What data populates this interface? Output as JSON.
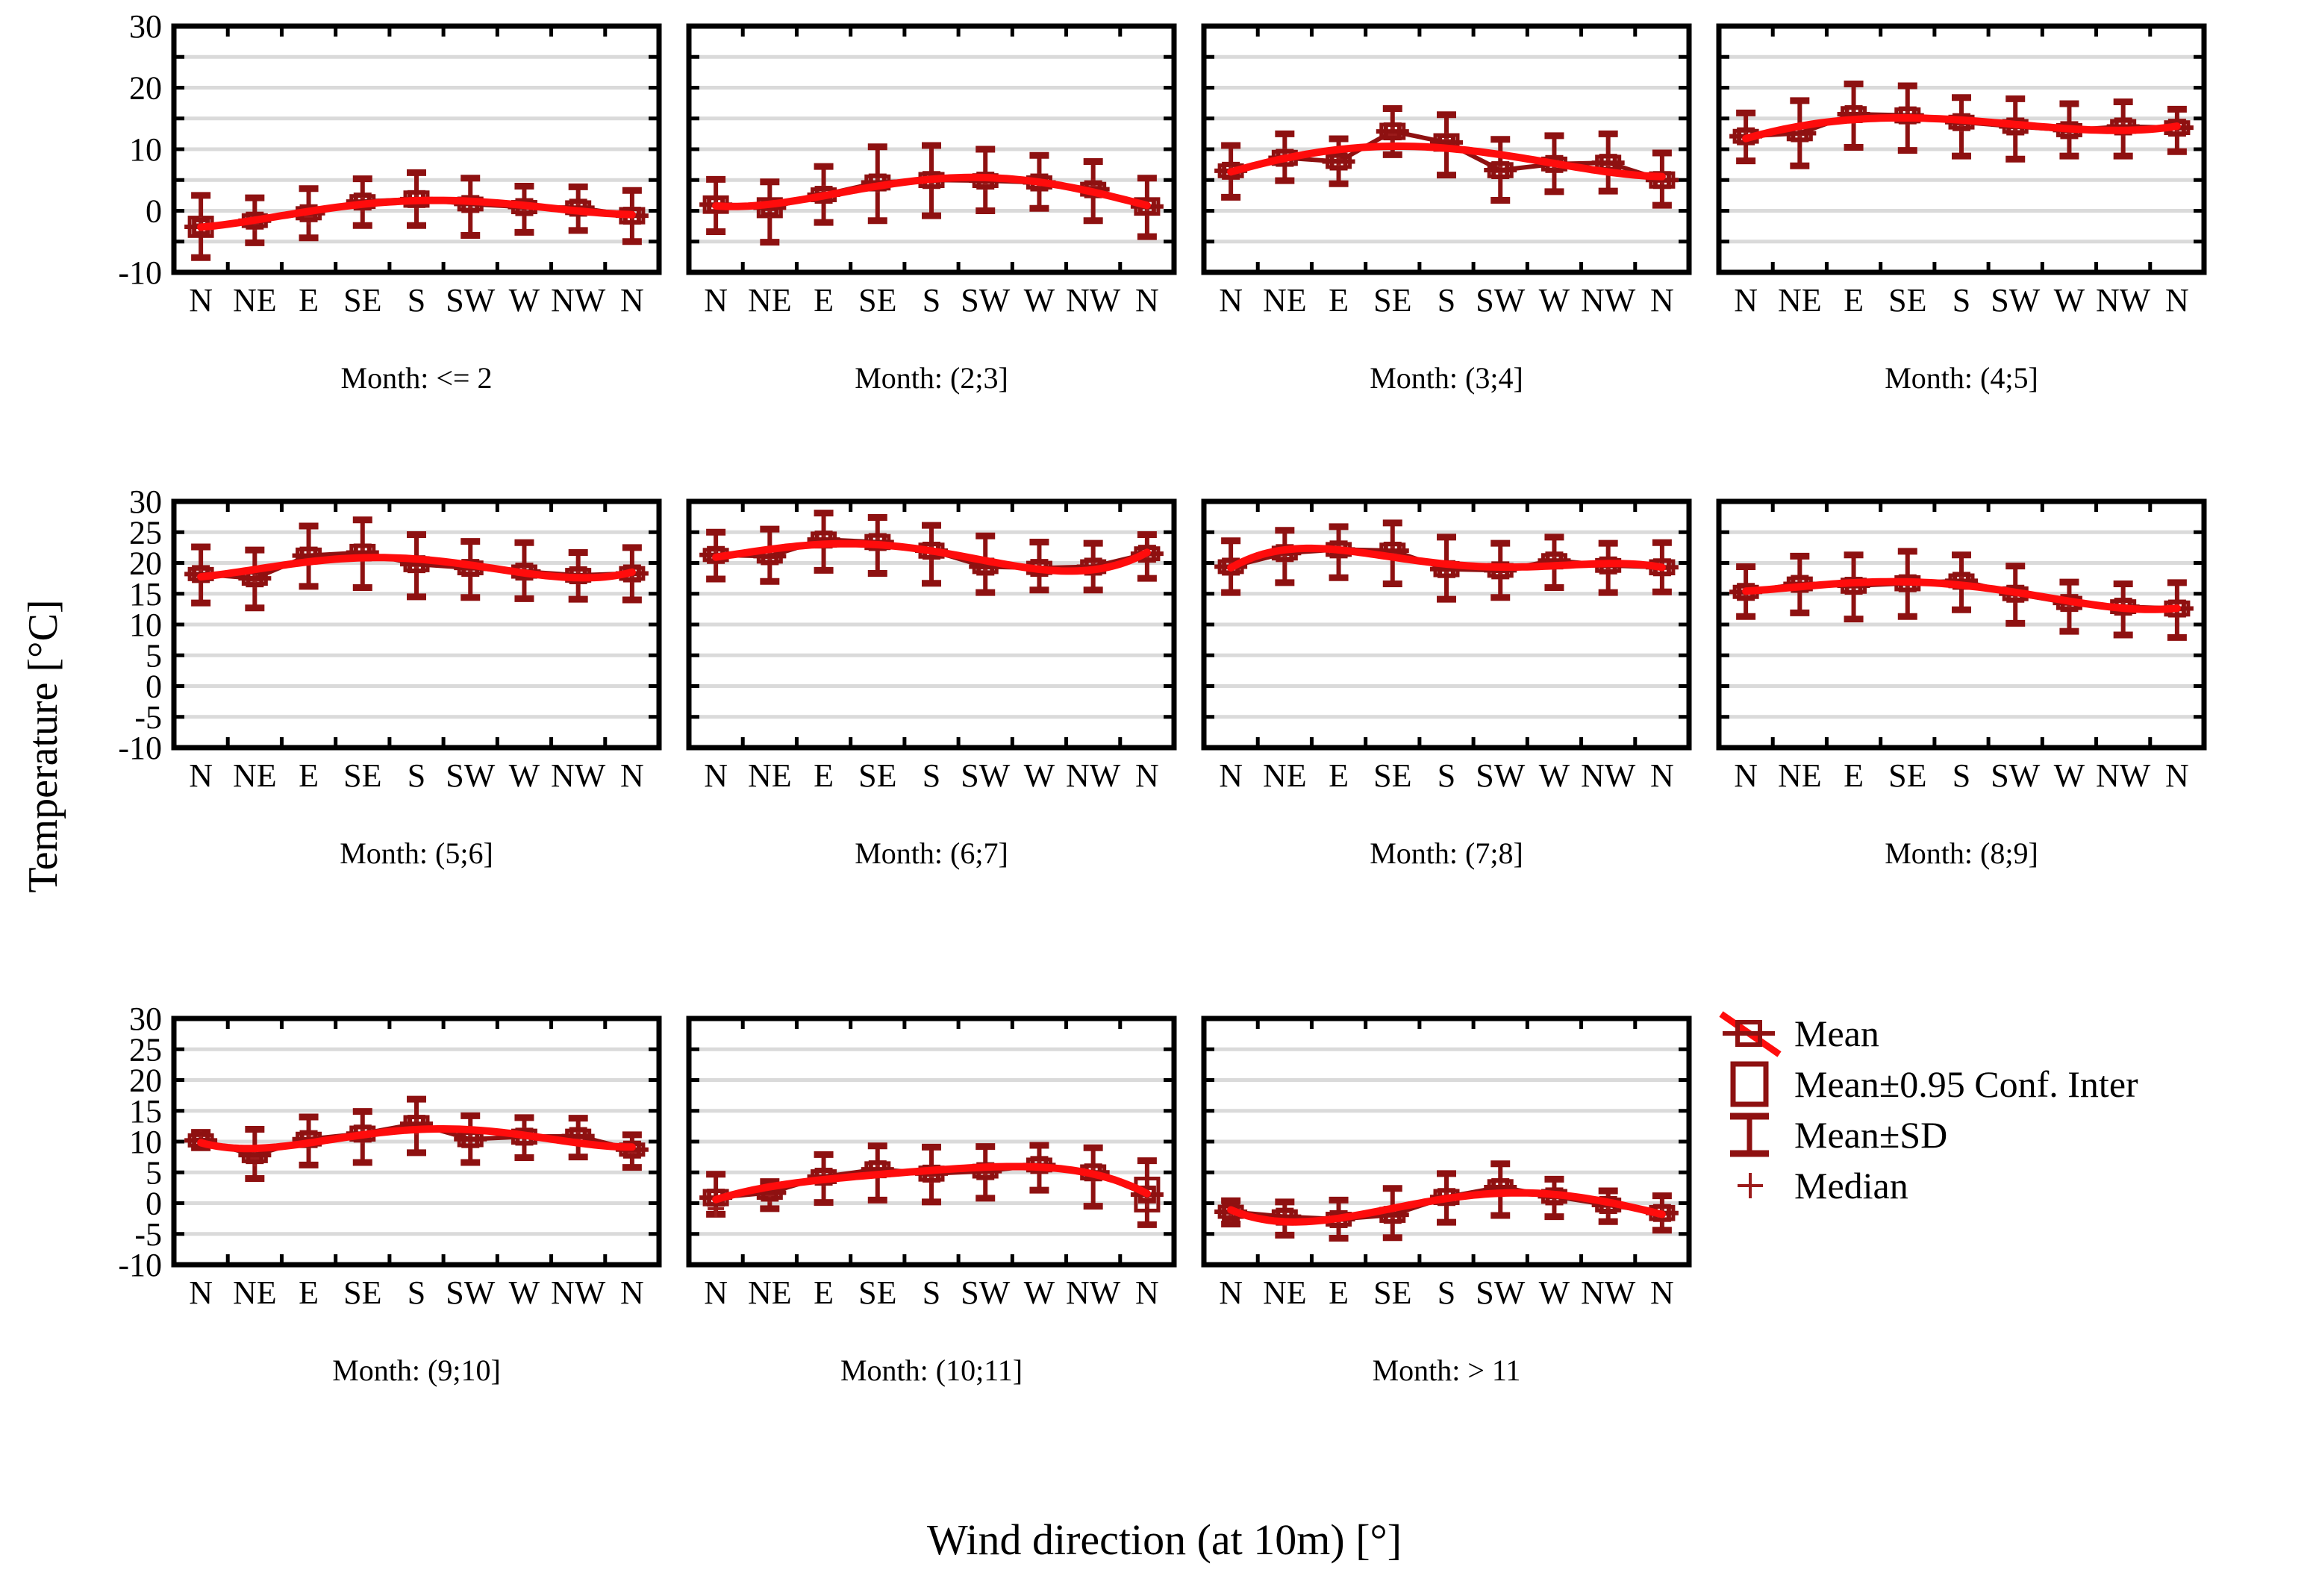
{
  "figure": {
    "y_axis_label": "Temperature [°C]",
    "x_axis_label": "Wind direction (at 10m) [°]",
    "colors": {
      "dark_red": "#8E1111",
      "bright_red": "#FF0C0C",
      "gridline": "#DADADA",
      "axis": "#000000"
    },
    "y_tick_labels_row1": [
      "30",
      "20",
      "10",
      "0",
      "-10"
    ],
    "y_tick_labels_rows23": [
      "30",
      "25",
      "20",
      "15",
      "10",
      "5",
      "0",
      "-5",
      "-10"
    ]
  },
  "legend": {
    "items": [
      {
        "label": "Mean",
        "symbol": "mean-square-with-line-icon"
      },
      {
        "label": "Mean±0.95 Conf. Inter",
        "symbol": "conf-interval-square-icon"
      },
      {
        "label": "Mean±SD",
        "symbol": "sd-whisker-icon"
      },
      {
        "label": "Median",
        "symbol": "median-plus-icon"
      }
    ]
  },
  "chart_data": [
    {
      "type": "line",
      "title": "Month: <= 2",
      "categories": [
        "N",
        "NE",
        "E",
        "SE",
        "S",
        "SW",
        "W",
        "NW",
        "N"
      ],
      "ylim": [
        -10,
        30
      ],
      "y_tick_labels": [
        "30",
        "20",
        "10",
        "0",
        "-10"
      ],
      "grid": true,
      "series": [
        {
          "name": "Mean",
          "values": [
            -2.6,
            -1.6,
            -0.4,
            1.5,
            1.9,
            1.1,
            0.6,
            0.5,
            -0.8
          ]
        },
        {
          "name": "Mean+SD",
          "values": [
            2.5,
            2.1,
            3.6,
            5.2,
            6.2,
            5.3,
            4.0,
            3.9,
            3.3
          ]
        },
        {
          "name": "Mean-SD",
          "values": [
            -7.6,
            -5.2,
            -4.4,
            -2.4,
            -2.4,
            -4.0,
            -3.5,
            -3.2,
            -5.0
          ]
        },
        {
          "name": "Median",
          "values": [
            -2.3,
            -2.0,
            -0.9,
            1.2,
            1.6,
            1.3,
            0.4,
            0.6,
            -0.6
          ]
        },
        {
          "name": "CI95_halfwidth",
          "values": [
            1.5,
            0.9,
            0.8,
            0.9,
            1.1,
            0.9,
            0.8,
            0.9,
            1.1
          ]
        }
      ]
    },
    {
      "type": "line",
      "title": "Month: (2;3]",
      "categories": [
        "N",
        "NE",
        "E",
        "SE",
        "S",
        "SW",
        "W",
        "NW",
        "N"
      ],
      "ylim": [
        -10,
        30
      ],
      "y_tick_labels": [],
      "grid": true,
      "series": [
        {
          "name": "Mean",
          "values": [
            1.0,
            0.5,
            2.6,
            4.6,
            5.0,
            4.9,
            4.6,
            3.5,
            0.7
          ]
        },
        {
          "name": "Mean+SD",
          "values": [
            5.1,
            4.7,
            7.2,
            10.4,
            10.6,
            10.0,
            9.0,
            8.0,
            5.3
          ]
        },
        {
          "name": "Mean-SD",
          "values": [
            -3.4,
            -5.1,
            -1.9,
            -1.6,
            -0.8,
            0.0,
            0.4,
            -1.6,
            -4.2
          ]
        },
        {
          "name": "Median",
          "values": [
            0.8,
            0.2,
            2.9,
            4.2,
            4.7,
            4.6,
            4.8,
            3.8,
            0.5
          ]
        },
        {
          "name": "CI95_halfwidth",
          "values": [
            1.2,
            1.4,
            0.9,
            1.0,
            1.0,
            0.9,
            0.8,
            0.9,
            1.2
          ]
        }
      ]
    },
    {
      "type": "line",
      "title": "Month: (3;4]",
      "categories": [
        "N",
        "NE",
        "E",
        "SE",
        "S",
        "SW",
        "W",
        "NW",
        "N"
      ],
      "ylim": [
        -10,
        30
      ],
      "y_tick_labels": [],
      "grid": true,
      "series": [
        {
          "name": "Mean",
          "values": [
            6.5,
            8.6,
            8.0,
            12.9,
            11.1,
            6.6,
            7.6,
            7.8,
            5.0
          ]
        },
        {
          "name": "Mean+SD",
          "values": [
            10.6,
            12.5,
            11.7,
            16.6,
            15.6,
            11.6,
            12.2,
            12.5,
            9.4
          ]
        },
        {
          "name": "Mean-SD",
          "values": [
            2.2,
            4.9,
            4.4,
            9.1,
            5.8,
            1.7,
            3.1,
            3.2,
            0.9
          ]
        },
        {
          "name": "Median",
          "values": [
            6.3,
            8.9,
            8.2,
            12.3,
            11.4,
            6.4,
            7.4,
            7.5,
            4.8
          ]
        },
        {
          "name": "CI95_halfwidth",
          "values": [
            0.9,
            1.0,
            0.9,
            1.1,
            1.2,
            1.0,
            0.9,
            1.0,
            1.1
          ]
        }
      ]
    },
    {
      "type": "line",
      "title": "Month: (4;5]",
      "categories": [
        "N",
        "NE",
        "E",
        "SE",
        "S",
        "SW",
        "W",
        "NW",
        "N"
      ],
      "ylim": [
        -10,
        30
      ],
      "y_tick_labels": [],
      "grid": true,
      "series": [
        {
          "name": "Mean",
          "values": [
            12.1,
            12.6,
            15.7,
            15.5,
            14.4,
            13.7,
            13.1,
            13.7,
            13.5
          ]
        },
        {
          "name": "Mean+SD",
          "values": [
            15.9,
            17.9,
            20.6,
            20.3,
            18.4,
            18.2,
            17.4,
            17.7,
            16.5
          ]
        },
        {
          "name": "Mean-SD",
          "values": [
            8.1,
            7.3,
            10.3,
            9.8,
            8.9,
            8.4,
            8.9,
            8.9,
            9.6
          ]
        },
        {
          "name": "Median",
          "values": [
            12.0,
            12.4,
            15.4,
            15.2,
            14.1,
            13.5,
            12.9,
            13.4,
            13.3
          ]
        },
        {
          "name": "CI95_halfwidth",
          "values": [
            0.9,
            1.0,
            1.0,
            1.0,
            0.9,
            0.9,
            0.8,
            0.9,
            0.9
          ]
        }
      ]
    },
    {
      "type": "line",
      "title": "Month: (5;6]",
      "categories": [
        "N",
        "NE",
        "E",
        "SE",
        "S",
        "SW",
        "W",
        "NW",
        "N"
      ],
      "ylim": [
        -10,
        30
      ],
      "y_tick_labels": [
        "30",
        "25",
        "20",
        "15",
        "10",
        "5",
        "0",
        "-5",
        "-10"
      ],
      "grid": true,
      "series": [
        {
          "name": "Mean",
          "values": [
            18.2,
            17.5,
            21.2,
            21.7,
            19.8,
            19.2,
            18.6,
            18.0,
            18.3
          ]
        },
        {
          "name": "Mean+SD",
          "values": [
            22.6,
            22.1,
            26.0,
            27.0,
            24.6,
            23.5,
            23.3,
            21.7,
            22.5
          ]
        },
        {
          "name": "Mean-SD",
          "values": [
            13.5,
            12.7,
            16.2,
            16.0,
            14.5,
            14.4,
            14.2,
            14.1,
            14.0
          ]
        },
        {
          "name": "Median",
          "values": [
            18.0,
            17.2,
            21.0,
            21.4,
            19.6,
            19.0,
            18.4,
            17.8,
            18.1
          ]
        },
        {
          "name": "CI95_halfwidth",
          "values": [
            0.8,
            0.9,
            1.0,
            1.1,
            1.0,
            0.9,
            0.8,
            0.9,
            0.9
          ]
        }
      ]
    },
    {
      "type": "line",
      "title": "Month: (6;7]",
      "categories": [
        "N",
        "NE",
        "E",
        "SE",
        "S",
        "SW",
        "W",
        "NW",
        "N"
      ],
      "ylim": [
        -10,
        30
      ],
      "y_tick_labels": [],
      "grid": true,
      "series": [
        {
          "name": "Mean",
          "values": [
            21.3,
            21.1,
            23.8,
            23.4,
            22.0,
            19.4,
            19.2,
            19.4,
            21.5
          ]
        },
        {
          "name": "Mean+SD",
          "values": [
            25.0,
            25.5,
            28.1,
            27.4,
            26.1,
            24.4,
            23.4,
            23.2,
            24.6
          ]
        },
        {
          "name": "Mean-SD",
          "values": [
            17.4,
            17.0,
            18.8,
            18.3,
            16.7,
            15.2,
            15.6,
            15.6,
            17.5
          ]
        },
        {
          "name": "Median",
          "values": [
            21.1,
            20.9,
            23.6,
            23.2,
            21.7,
            19.2,
            19.0,
            19.2,
            21.3
          ]
        },
        {
          "name": "CI95_halfwidth",
          "values": [
            0.8,
            0.9,
            1.0,
            1.0,
            1.0,
            0.9,
            0.8,
            0.9,
            0.9
          ]
        }
      ]
    },
    {
      "type": "line",
      "title": "Month: (7;8]",
      "categories": [
        "N",
        "NE",
        "E",
        "SE",
        "S",
        "SW",
        "W",
        "NW",
        "N"
      ],
      "ylim": [
        -10,
        30
      ],
      "y_tick_labels": [],
      "grid": true,
      "series": [
        {
          "name": "Mean",
          "values": [
            19.4,
            21.6,
            22.2,
            22.0,
            19.0,
            18.8,
            20.4,
            19.6,
            19.3
          ]
        },
        {
          "name": "Mean+SD",
          "values": [
            23.6,
            25.3,
            25.9,
            26.5,
            24.2,
            23.2,
            24.2,
            23.2,
            23.3
          ]
        },
        {
          "name": "Mean-SD",
          "values": [
            15.2,
            16.8,
            17.6,
            16.6,
            14.1,
            14.4,
            16.0,
            15.2,
            15.3
          ]
        },
        {
          "name": "Median",
          "values": [
            19.2,
            21.4,
            22.0,
            21.8,
            18.8,
            18.6,
            20.1,
            19.4,
            19.1
          ]
        },
        {
          "name": "CI95_halfwidth",
          "values": [
            0.9,
            0.9,
            0.9,
            1.0,
            1.0,
            0.9,
            0.9,
            0.9,
            1.0
          ]
        }
      ]
    },
    {
      "type": "line",
      "title": "Month: (8;9]",
      "categories": [
        "N",
        "NE",
        "E",
        "SE",
        "S",
        "SW",
        "W",
        "NW",
        "N"
      ],
      "ylim": [
        -10,
        30
      ],
      "y_tick_labels": [],
      "grid": true,
      "series": [
        {
          "name": "Mean",
          "values": [
            15.3,
            16.6,
            16.3,
            16.7,
            17.1,
            15.0,
            13.5,
            12.9,
            12.6
          ]
        },
        {
          "name": "Mean+SD",
          "values": [
            19.4,
            21.1,
            21.3,
            21.9,
            21.3,
            19.5,
            16.9,
            16.6,
            16.8
          ]
        },
        {
          "name": "Mean-SD",
          "values": [
            11.3,
            11.9,
            10.9,
            11.3,
            12.4,
            10.2,
            8.9,
            8.3,
            7.9
          ]
        },
        {
          "name": "Median",
          "values": [
            15.1,
            16.4,
            16.1,
            16.5,
            16.9,
            14.8,
            13.3,
            12.7,
            12.4
          ]
        },
        {
          "name": "CI95_halfwidth",
          "values": [
            0.8,
            0.9,
            1.0,
            1.0,
            0.9,
            0.9,
            0.8,
            0.9,
            1.0
          ]
        }
      ]
    },
    {
      "type": "line",
      "title": "Month: (9;10]",
      "categories": [
        "N",
        "NE",
        "E",
        "SE",
        "S",
        "SW",
        "W",
        "NW",
        "N"
      ],
      "ylim": [
        -10,
        30
      ],
      "y_tick_labels": [
        "30",
        "25",
        "20",
        "15",
        "10",
        "5",
        "0",
        "-5",
        "-10"
      ],
      "grid": true,
      "series": [
        {
          "name": "Mean",
          "values": [
            10.2,
            7.8,
            10.4,
            11.3,
            12.9,
            10.4,
            10.8,
            10.9,
            8.7
          ]
        },
        {
          "name": "Mean+SD",
          "values": [
            11.5,
            12.0,
            14.0,
            14.9,
            16.9,
            14.2,
            13.9,
            13.8,
            11.1
          ]
        },
        {
          "name": "Mean-SD",
          "values": [
            9.0,
            4.0,
            6.2,
            6.6,
            8.2,
            6.6,
            7.4,
            7.5,
            5.8
          ]
        },
        {
          "name": "Median",
          "values": [
            10.4,
            7.3,
            10.1,
            11.0,
            12.4,
            10.2,
            11.1,
            10.6,
            8.4
          ]
        },
        {
          "name": "CI95_halfwidth",
          "values": [
            0.4,
            1.0,
            0.9,
            1.0,
            1.1,
            1.0,
            1.0,
            0.9,
            0.8
          ]
        }
      ]
    },
    {
      "type": "line",
      "title": "Month: (10;11]",
      "categories": [
        "N",
        "NE",
        "E",
        "SE",
        "S",
        "SW",
        "W",
        "NW",
        "N"
      ],
      "ylim": [
        -10,
        30
      ],
      "y_tick_labels": [],
      "grid": true,
      "series": [
        {
          "name": "Mean",
          "values": [
            0.9,
            1.7,
            4.3,
            5.5,
            4.8,
            5.2,
            6.2,
            5.0,
            1.4
          ]
        },
        {
          "name": "Mean+SD",
          "values": [
            4.7,
            3.5,
            7.9,
            9.3,
            9.1,
            9.2,
            9.4,
            9.0,
            6.9
          ]
        },
        {
          "name": "Mean-SD",
          "values": [
            -1.8,
            -0.9,
            0.1,
            0.5,
            0.2,
            0.8,
            2.1,
            -0.5,
            -3.5
          ]
        },
        {
          "name": "Median",
          "values": [
            -0.9,
            1.4,
            4.0,
            5.2,
            4.5,
            5.0,
            6.0,
            4.7,
            0.7
          ]
        },
        {
          "name": "CI95_halfwidth",
          "values": [
            1.1,
            0.8,
            0.9,
            1.0,
            1.0,
            0.9,
            0.9,
            1.0,
            2.6
          ]
        }
      ]
    },
    {
      "type": "line",
      "title": "Month: > 11",
      "categories": [
        "N",
        "NE",
        "E",
        "SE",
        "S",
        "SW",
        "W",
        "NW",
        "N"
      ],
      "ylim": [
        -10,
        30
      ],
      "y_tick_labels": [],
      "grid": true,
      "series": [
        {
          "name": "Mean",
          "values": [
            -1.4,
            -2.2,
            -2.6,
            -1.9,
            1.0,
            2.6,
            1.1,
            -0.3,
            -1.6
          ]
        },
        {
          "name": "Mean+SD",
          "values": [
            0.4,
            0.2,
            0.5,
            2.4,
            4.8,
            6.4,
            3.9,
            2.0,
            1.2
          ]
        },
        {
          "name": "Mean-SD",
          "values": [
            -3.4,
            -5.2,
            -5.7,
            -5.6,
            -3.1,
            -2.0,
            -2.2,
            -3.0,
            -4.4
          ]
        },
        {
          "name": "Median",
          "values": [
            -1.6,
            -2.4,
            -2.8,
            -2.1,
            0.8,
            2.4,
            0.9,
            -0.5,
            -1.8
          ]
        },
        {
          "name": "CI95_halfwidth",
          "values": [
            0.8,
            0.9,
            0.9,
            1.0,
            1.0,
            1.0,
            0.9,
            0.9,
            1.0
          ]
        }
      ]
    }
  ]
}
